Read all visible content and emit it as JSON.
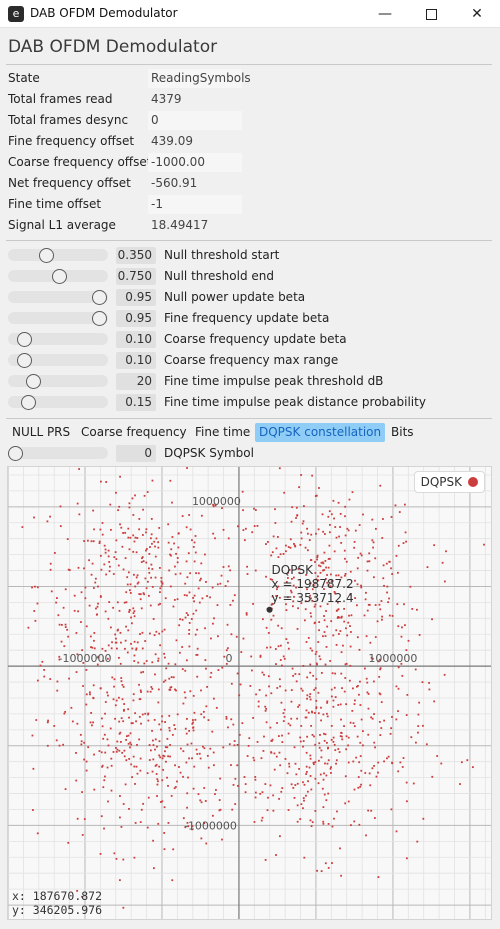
{
  "window": {
    "title": "DAB OFDM Demodulator",
    "icon_glyph": "e",
    "minimize_icon": "minimize-icon",
    "maximize_icon": "maximize-icon",
    "close_icon": "close-icon"
  },
  "app": {
    "title": "DAB OFDM Demodulator"
  },
  "stats": [
    {
      "label": "State",
      "value": "ReadingSymbols"
    },
    {
      "label": "Total frames read",
      "value": "4379"
    },
    {
      "label": "Total frames desync",
      "value": "0"
    },
    {
      "label": "Fine frequency offset",
      "value": "439.09"
    },
    {
      "label": "Coarse frequency offset",
      "value": "-1000.00"
    },
    {
      "label": "Net frequency offset",
      "value": "-560.91"
    },
    {
      "label": "Fine time offset",
      "value": "-1"
    },
    {
      "label": "Signal L1 average",
      "value": "18.49417"
    }
  ],
  "sliders": [
    {
      "value": "0.350",
      "label": "Null threshold start",
      "level": 0.35
    },
    {
      "value": "0.750",
      "label": "Null threshold end",
      "level": 0.5
    },
    {
      "value": "0.95",
      "label": "Null power update beta",
      "level": 0.95
    },
    {
      "value": "0.95",
      "label": "Fine frequency update beta",
      "level": 0.95
    },
    {
      "value": "0.10",
      "label": "Coarse frequency update beta",
      "level": 0.1
    },
    {
      "value": "0.10",
      "label": "Coarse frequency max range",
      "level": 0.1
    },
    {
      "value": "20",
      "label": "Fine time impulse peak threshold dB",
      "level": 0.2
    },
    {
      "value": "0.15",
      "label": "Fine time impulse peak distance probability",
      "level": 0.15
    }
  ],
  "tabs": [
    "NULL PRS",
    "Coarse frequency",
    "Fine time",
    "DQPSK constellation",
    "Bits"
  ],
  "active_tab": 3,
  "symbol_slider": {
    "value": "0",
    "label": "DQPSK Symbol",
    "level": 0
  },
  "colors": {
    "accent": "#90cdf6",
    "series": "#cc3d3d"
  },
  "chart_data": {
    "type": "scatter",
    "series": [
      {
        "name": "DQPSK"
      }
    ],
    "legend": "top-right",
    "xlim": [
      -1500000,
      1650000
    ],
    "ylim": [
      -1600000,
      1250000
    ],
    "x_ticks": [
      -1000000,
      0,
      1000000
    ],
    "y_ticks": [
      -1000000,
      0,
      1000000
    ],
    "x_tick_labels": [
      "-1000000",
      "0",
      "1000000"
    ],
    "y_tick_labels": [
      "-1000000",
      "1000000"
    ],
    "grid": true,
    "clusters": [
      {
        "cx": -650000,
        "cy": 520000,
        "spread": 330000
      },
      {
        "cx": 550000,
        "cy": 500000,
        "spread": 330000
      },
      {
        "cx": -600000,
        "cy": -480000,
        "spread": 330000
      },
      {
        "cx": 540000,
        "cy": -500000,
        "spread": 330000
      }
    ],
    "hover_point": {
      "x": 198787.2,
      "y": 353712.4,
      "series": "DQPSK",
      "x_label": "x = 198787.2",
      "y_label": "y = 353712.4"
    },
    "cursor": {
      "x": "187670.872",
      "y": "346205.976"
    }
  }
}
